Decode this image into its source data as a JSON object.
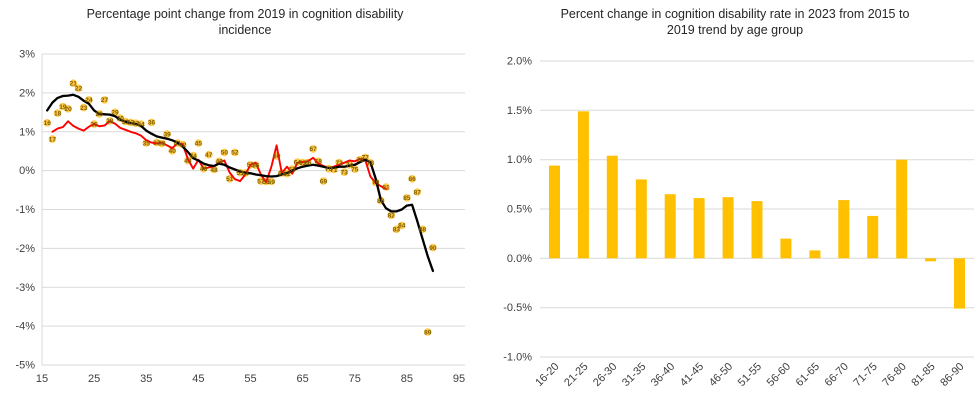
{
  "page": {
    "background": "#ffffff"
  },
  "chart_data": [
    {
      "type": "scatter",
      "title": "Percentage point change from 2019 in cognition disability incidence",
      "title_lines": [
        "Percentage point change from 2019 in cognition disability",
        "incidence"
      ],
      "xlim": [
        15,
        95
      ],
      "ylim": [
        -5,
        3
      ],
      "x_ticks": [
        15,
        25,
        35,
        45,
        55,
        65,
        75,
        85,
        95
      ],
      "x_tick_labels": [
        "15",
        "25",
        "35",
        "45",
        "55",
        "65",
        "75",
        "85",
        "95"
      ],
      "y_ticks": [
        3,
        2,
        1,
        0,
        -1,
        -2,
        -3,
        -4,
        -5
      ],
      "y_tick_labels": [
        "3%",
        "2%",
        "1%",
        "0%",
        "-1%",
        "-2%",
        "-3%",
        "-4%",
        "-5%"
      ],
      "gridline_color": "#D9D9D9",
      "axis_label_color": "#404040",
      "grid": true,
      "legend": "none",
      "ages": [
        16,
        17,
        18,
        19,
        20,
        21,
        22,
        23,
        24,
        25,
        26,
        27,
        28,
        29,
        30,
        31,
        32,
        33,
        34,
        35,
        36,
        37,
        38,
        39,
        40,
        41,
        42,
        43,
        44,
        45,
        46,
        47,
        48,
        49,
        50,
        51,
        52,
        53,
        54,
        55,
        56,
        57,
        58,
        59,
        60,
        61,
        62,
        63,
        64,
        65,
        66,
        67,
        68,
        69,
        70,
        71,
        72,
        73,
        74,
        75,
        76,
        77,
        78,
        79,
        80,
        81,
        82,
        83,
        84,
        85,
        86,
        87,
        88,
        89,
        90
      ],
      "series": [
        {
          "name": "age-labeled-markers",
          "kind": "scatter-labeled",
          "marker_color": "#FFC94A",
          "label_color": "#7F6000",
          "values": [
            1.23,
            0.81,
            1.48,
            1.65,
            1.59,
            2.25,
            2.12,
            1.62,
            1.82,
            1.2,
            1.46,
            1.82,
            1.28,
            1.5,
            1.35,
            1.26,
            1.24,
            1.22,
            1.2,
            0.71,
            1.24,
            0.72,
            0.7,
            0.94,
            0.51,
            0.71,
            0.67,
            0.26,
            0.39,
            0.71,
            0.05,
            0.41,
            0.03,
            0.24,
            0.47,
            -0.21,
            0.47,
            -0.05,
            -0.06,
            0.15,
            0.14,
            -0.27,
            -0.28,
            -0.28,
            0.38,
            -0.06,
            -0.08,
            0.04,
            0.22,
            0.21,
            0.21,
            0.56,
            0.24,
            -0.27,
            0.05,
            0.03,
            0.21,
            -0.04,
            0.15,
            0.04,
            0.28,
            0.34,
            0.2,
            -0.3,
            -0.77,
            -0.42,
            -1.15,
            -1.51,
            -1.41,
            -0.7,
            -0.21,
            -0.55,
            -1.51,
            -4.15,
            -1.98
          ]
        },
        {
          "name": "red-line",
          "kind": "line",
          "color": "#FF0000",
          "width": 1.9,
          "values": [
            null,
            1.0,
            1.08,
            1.12,
            1.27,
            1.15,
            1.08,
            1.03,
            1.13,
            1.2,
            1.14,
            1.16,
            1.27,
            1.21,
            1.1,
            1.05,
            1.0,
            0.96,
            0.9,
            0.78,
            0.72,
            0.7,
            0.72,
            0.65,
            0.58,
            0.7,
            0.68,
            0.3,
            0.05,
            0.28,
            0.05,
            0.08,
            0.11,
            0.21,
            0.26,
            -0.05,
            -0.22,
            -0.27,
            -0.1,
            0.15,
            0.2,
            -0.1,
            -0.3,
            0.1,
            0.65,
            -0.06,
            0.1,
            -0.08,
            0.2,
            0.22,
            0.24,
            0.33,
            0.18,
            0.12,
            0.07,
            0.1,
            0.15,
            0.2,
            0.26,
            0.24,
            0.3,
            0.28,
            -0.15,
            -0.32,
            -0.4,
            -0.47,
            null,
            null,
            null,
            null,
            null,
            null,
            null,
            null,
            null
          ]
        },
        {
          "name": "black-line",
          "kind": "line",
          "color": "#000000",
          "width": 2.3,
          "values": [
            1.55,
            1.75,
            1.87,
            1.92,
            1.93,
            1.95,
            1.9,
            1.8,
            1.72,
            1.55,
            1.46,
            1.45,
            1.44,
            1.4,
            1.31,
            1.26,
            1.22,
            1.2,
            1.15,
            1.03,
            0.95,
            0.88,
            0.85,
            0.82,
            0.78,
            0.72,
            0.62,
            0.48,
            0.32,
            0.26,
            0.18,
            0.14,
            0.12,
            0.18,
            0.15,
            0.08,
            0.03,
            -0.02,
            -0.05,
            -0.07,
            -0.1,
            -0.12,
            -0.14,
            -0.15,
            -0.14,
            -0.1,
            -0.06,
            0.0,
            0.06,
            0.1,
            0.13,
            0.15,
            0.13,
            0.1,
            0.07,
            0.07,
            0.1,
            0.1,
            0.13,
            0.15,
            0.22,
            0.28,
            0.22,
            -0.2,
            -0.75,
            -0.97,
            -1.05,
            -1.05,
            -1.0,
            -0.9,
            -0.88,
            -1.3,
            -1.75,
            -2.2,
            -2.58
          ]
        }
      ]
    },
    {
      "type": "bar",
      "title": "Percent change in cognition disability rate in 2023 from 2015 to 2019 trend by age group",
      "title_lines": [
        "Percent change in cognition disability rate in 2023 from 2015 to",
        "2019 trend by age group"
      ],
      "categories": [
        "16-20",
        "21-25",
        "26-30",
        "31-35",
        "36-40",
        "41-45",
        "46-50",
        "51-55",
        "56-60",
        "61-65",
        "66-70",
        "71-75",
        "76-80",
        "81-85",
        "86-90"
      ],
      "values": [
        0.94,
        1.49,
        1.04,
        0.8,
        0.65,
        0.61,
        0.62,
        0.58,
        0.2,
        0.08,
        0.59,
        0.43,
        1.0,
        -0.03,
        -0.51
      ],
      "bar_color": "#FFC000",
      "ylim": [
        -1.0,
        2.0
      ],
      "y_ticks": [
        2.0,
        1.5,
        1.0,
        0.5,
        0.0,
        -0.5,
        -1.0
      ],
      "y_tick_labels": [
        "2.0%",
        "1.5%",
        "1.0%",
        "0.5%",
        "0.0%",
        "-0.5%",
        "-1.0%"
      ],
      "gridline_color": "#D9D9D9",
      "axis_label_color": "#404040",
      "grid": true,
      "legend": "none"
    }
  ]
}
